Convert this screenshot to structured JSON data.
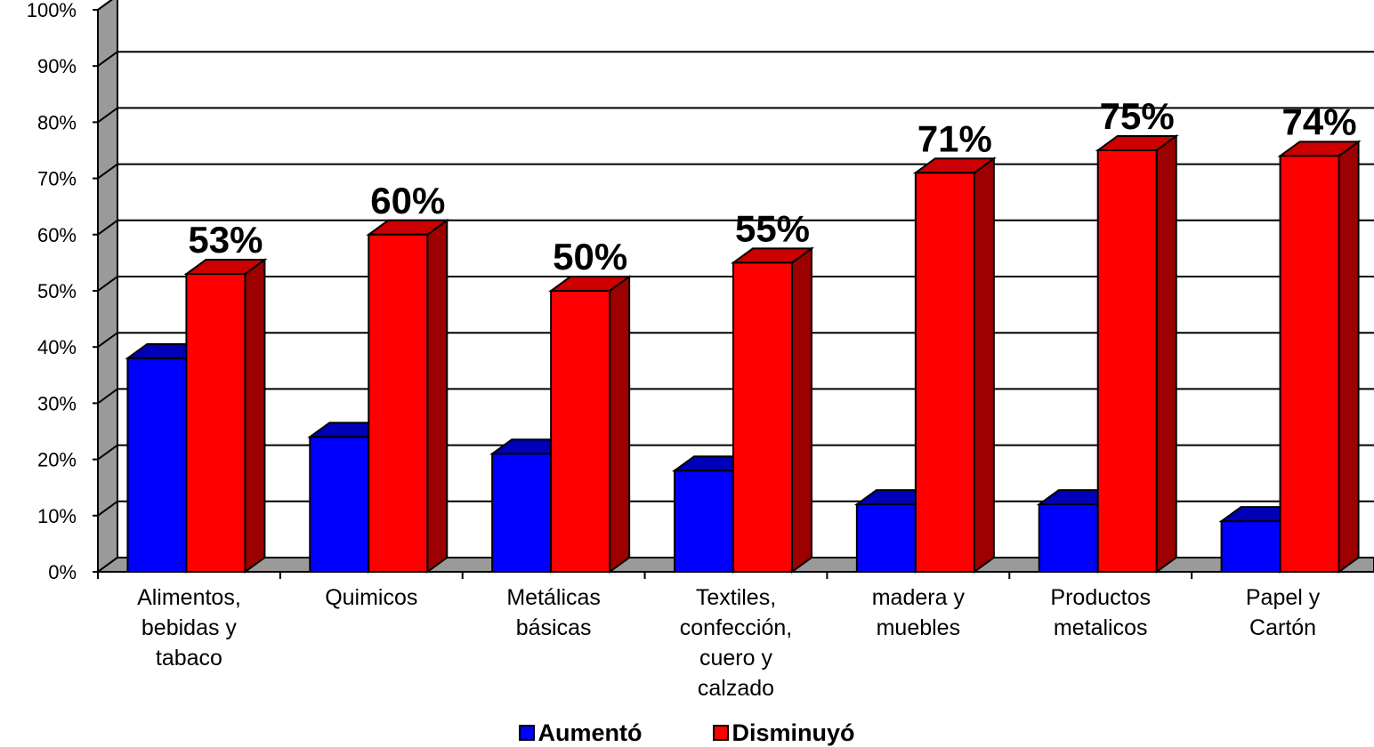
{
  "chart_data": {
    "type": "bar",
    "categories": [
      [
        "Alimentos,",
        "bebidas y",
        "tabaco"
      ],
      [
        "Quimicos"
      ],
      [
        "Metálicas",
        "básicas"
      ],
      [
        "Textiles,",
        "confección,",
        "cuero y",
        "calzado"
      ],
      [
        "madera y",
        "muebles"
      ],
      [
        "Productos",
        "metalicos"
      ],
      [
        "Papel y",
        "Cartón"
      ]
    ],
    "series": [
      {
        "name": "Aumentó",
        "color": "#0000ff",
        "values": [
          38,
          24,
          21,
          18,
          12,
          12,
          9
        ]
      },
      {
        "name": "Disminuyó",
        "color": "#ff0000",
        "values": [
          53,
          60,
          50,
          55,
          71,
          75,
          74
        ],
        "data_labels": [
          "53%",
          "60%",
          "50%",
          "55%",
          "71%",
          "75%",
          "74%"
        ]
      }
    ],
    "y_ticks": [
      "0%",
      "10%",
      "20%",
      "30%",
      "40%",
      "50%",
      "60%",
      "70%",
      "80%",
      "90%",
      "100%"
    ],
    "ylim": [
      0,
      100
    ],
    "grid": true,
    "legend_position": "bottom",
    "three_d": true
  }
}
